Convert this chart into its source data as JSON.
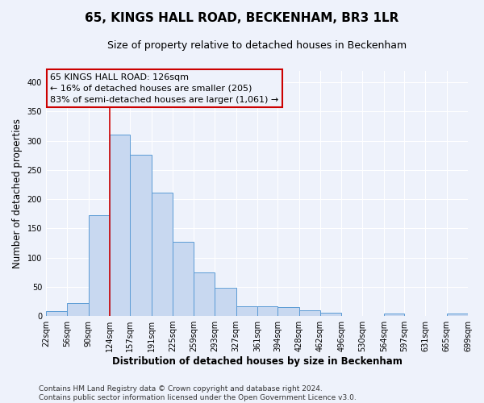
{
  "title": "65, KINGS HALL ROAD, BECKENHAM, BR3 1LR",
  "subtitle": "Size of property relative to detached houses in Beckenham",
  "xlabel": "Distribution of detached houses by size in Beckenham",
  "ylabel": "Number of detached properties",
  "bar_left_edges": [
    22,
    56,
    90,
    124,
    157,
    191,
    225,
    259,
    293,
    327,
    361,
    394,
    428,
    462,
    496,
    530,
    564,
    597,
    631,
    665
  ],
  "bar_widths": [
    34,
    34,
    34,
    33,
    34,
    34,
    34,
    34,
    34,
    34,
    33,
    34,
    34,
    34,
    34,
    34,
    33,
    34,
    34,
    34
  ],
  "bar_heights": [
    8,
    22,
    173,
    311,
    276,
    211,
    127,
    74,
    48,
    16,
    16,
    15,
    10,
    5,
    0,
    0,
    4,
    0,
    0,
    4
  ],
  "tick_labels": [
    "22sqm",
    "56sqm",
    "90sqm",
    "124sqm",
    "157sqm",
    "191sqm",
    "225sqm",
    "259sqm",
    "293sqm",
    "327sqm",
    "361sqm",
    "394sqm",
    "428sqm",
    "462sqm",
    "496sqm",
    "530sqm",
    "564sqm",
    "597sqm",
    "631sqm",
    "665sqm",
    "699sqm"
  ],
  "bar_color": "#c8d8f0",
  "bar_edge_color": "#5b9bd5",
  "vline_x": 124,
  "vline_color": "#cc0000",
  "annotation_line1": "65 KINGS HALL ROAD: 126sqm",
  "annotation_line2": "← 16% of detached houses are smaller (205)",
  "annotation_line3": "83% of semi-detached houses are larger (1,061) →",
  "ylim": [
    0,
    420
  ],
  "yticks": [
    0,
    50,
    100,
    150,
    200,
    250,
    300,
    350,
    400
  ],
  "footer1": "Contains HM Land Registry data © Crown copyright and database right 2024.",
  "footer2": "Contains public sector information licensed under the Open Government Licence v3.0.",
  "bg_color": "#eef2fb",
  "grid_color": "#ffffff",
  "title_fontsize": 11,
  "subtitle_fontsize": 9,
  "axis_label_fontsize": 8.5,
  "tick_fontsize": 7,
  "annotation_fontsize": 8,
  "footer_fontsize": 6.5
}
